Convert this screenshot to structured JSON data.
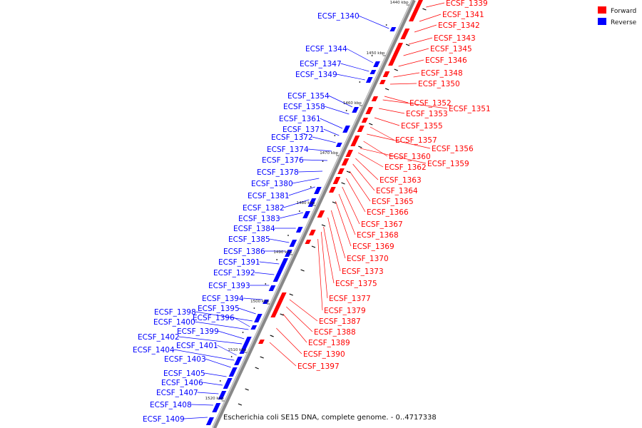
{
  "caption": "Escherichia coli SE15 DNA, complete genome. - 0..4717338",
  "legend": [
    {
      "label": "Forward",
      "color": "#ff0000"
    },
    {
      "label": "Reverse",
      "color": "#0000ff"
    }
  ],
  "colors": {
    "forward": "#ff0000",
    "reverse": "#0000ff",
    "axis": "#888888"
  },
  "ticks": [
    "1440 kbp",
    "1450 kbp",
    "1460 kbp",
    "1470 kbp",
    "1480 kbp",
    "1490 kbp",
    "1500 kbp",
    "1510 kbp",
    "1520 kbp"
  ],
  "forward_genes": [
    "ECSF_1339",
    "ECSF_1341",
    "ECSF_1342",
    "ECSF_1343",
    "ECSF_1345",
    "ECSF_1346",
    "ECSF_1348",
    "ECSF_1350",
    "ECSF_1352",
    "ECSF_1351",
    "ECSF_1353",
    "ECSF_1355",
    "ECSF_1357",
    "ECSF_1356",
    "ECSF_1360",
    "ECSF_1359",
    "ECSF_1362",
    "ECSF_1363",
    "ECSF_1364",
    "ECSF_1365",
    "ECSF_1366",
    "ECSF_1367",
    "ECSF_1368",
    "ECSF_1369",
    "ECSF_1370",
    "ECSF_1373",
    "ECSF_1375",
    "ECSF_1377",
    "ECSF_1379",
    "ECSF_1387",
    "ECSF_1388",
    "ECSF_1389",
    "ECSF_1390",
    "ECSF_1397"
  ],
  "reverse_genes": [
    "ECSF_1340",
    "ECSF_1344",
    "ECSF_1347",
    "ECSF_1349",
    "ECSF_1354",
    "ECSF_1358",
    "ECSF_1361",
    "ECSF_1371",
    "ECSF_1372",
    "ECSF_1374",
    "ECSF_1376",
    "ECSF_1378",
    "ECSF_1380",
    "ECSF_1381",
    "ECSF_1382",
    "ECSF_1383",
    "ECSF_1384",
    "ECSF_1385",
    "ECSF_1386",
    "ECSF_1391",
    "ECSF_1392",
    "ECSF_1393",
    "ECSF_1394",
    "ECSF_1395",
    "ECSF_1398",
    "ECSF_1396",
    "ECSF_1400",
    "ECSF_1399",
    "ECSF_1402",
    "ECSF_1401",
    "ECSF_1404",
    "ECSF_1403",
    "ECSF_1405",
    "ECSF_1406",
    "ECSF_1407",
    "ECSF_1408",
    "ECSF_1409"
  ]
}
